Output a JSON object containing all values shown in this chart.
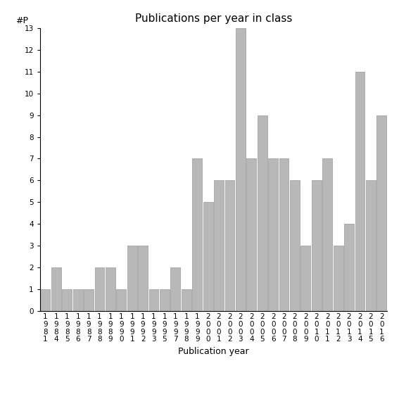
{
  "years": [
    1981,
    1984,
    1985,
    1986,
    1987,
    1988,
    1989,
    1990,
    1991,
    1992,
    1993,
    1995,
    1997,
    1998,
    1999,
    2000,
    2001,
    2002,
    2003,
    2004,
    2005,
    2006,
    2007,
    2008,
    2009,
    2010,
    2011,
    2012,
    2013,
    2014,
    2015,
    2016
  ],
  "values": [
    1,
    2,
    1,
    1,
    1,
    2,
    2,
    1,
    3,
    3,
    1,
    1,
    2,
    1,
    7,
    5,
    6,
    6,
    13,
    7,
    9,
    7,
    7,
    6,
    3,
    6,
    7,
    3,
    4,
    11,
    6,
    9
  ],
  "title": "Publications per year in class",
  "xlabel": "Publication year",
  "ylabel": "#P",
  "bar_color": "#b8b8b8",
  "bar_edge_color": "#999999",
  "ylim": [
    0,
    13
  ],
  "yticks": [
    0,
    1,
    2,
    3,
    4,
    5,
    6,
    7,
    8,
    9,
    10,
    11,
    12,
    13
  ],
  "background_color": "#ffffff",
  "title_fontsize": 11,
  "label_fontsize": 9,
  "tick_fontsize": 7.5
}
